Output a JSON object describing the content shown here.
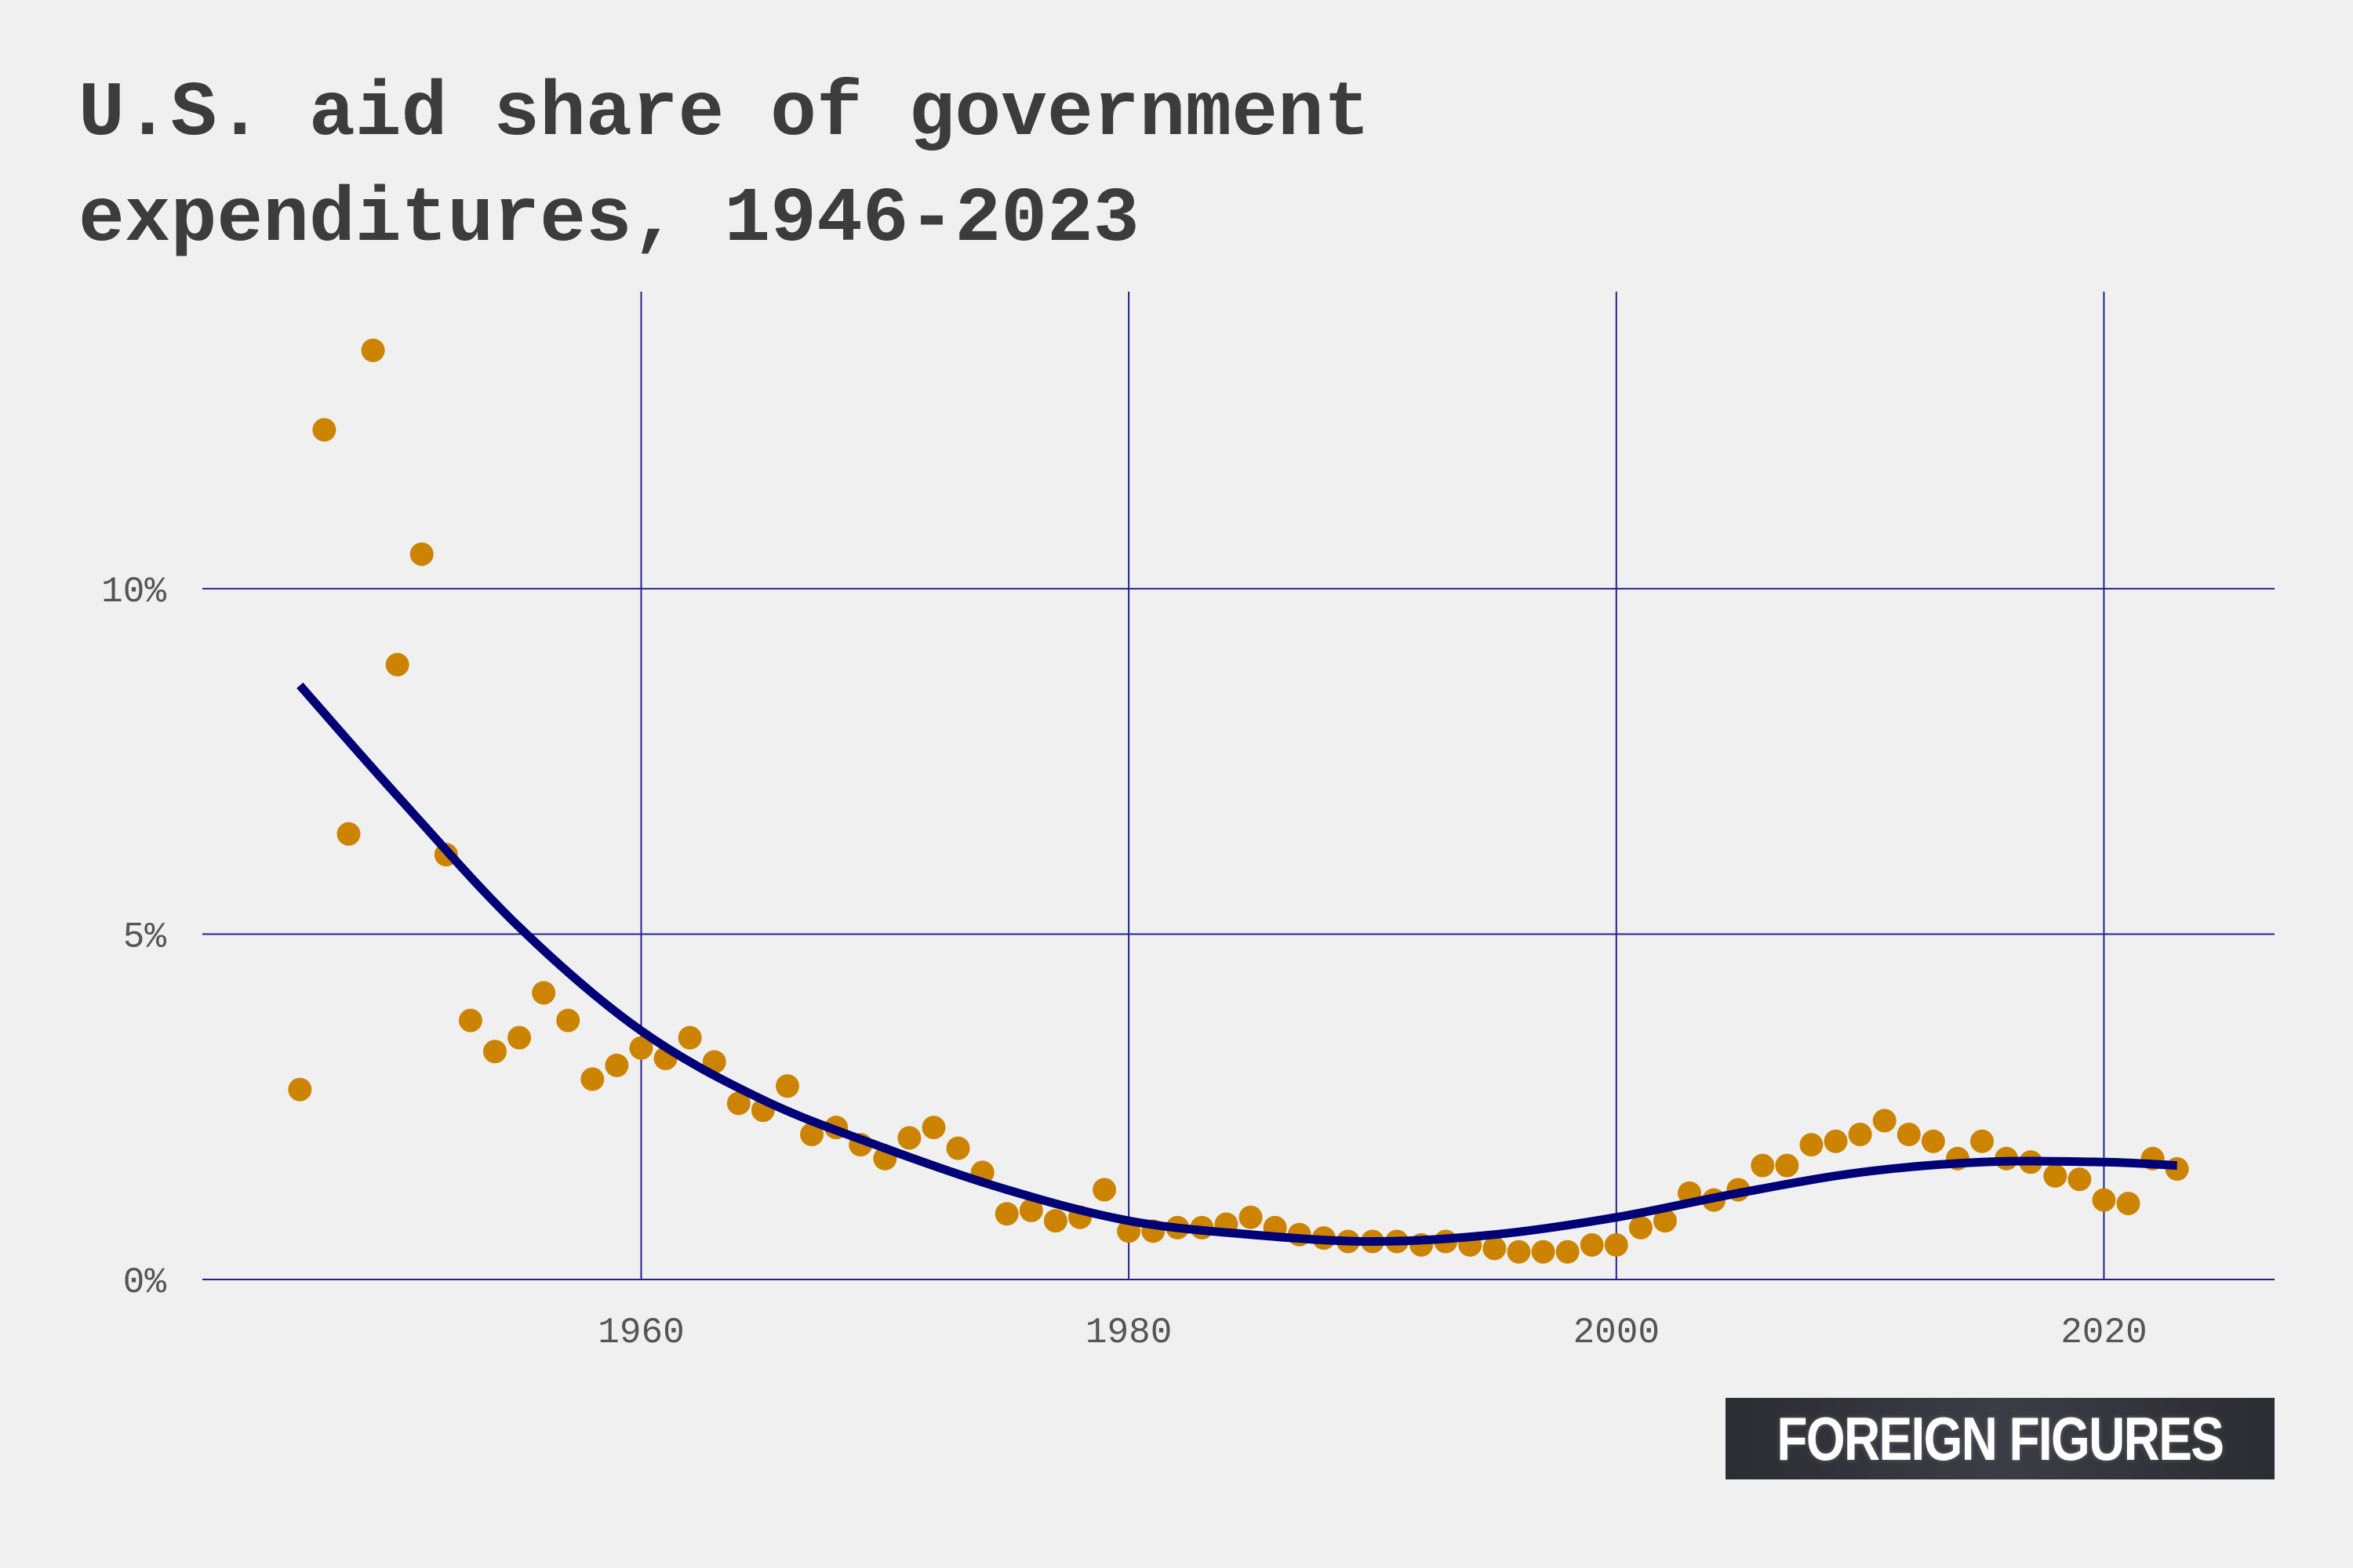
{
  "chart_data": {
    "type": "scatter",
    "title_lines": [
      "U.S. aid share of government",
      "expenditures, 1946-2023"
    ],
    "xlabel": "",
    "ylabel": "",
    "xlim": [
      1942,
      2027
    ],
    "ylim": [
      0,
      14.3
    ],
    "x_ticks": [
      1960,
      1980,
      2000,
      2020
    ],
    "x_tick_labels": [
      "1960",
      "1980",
      "2000",
      "2020"
    ],
    "y_ticks": [
      0,
      5,
      10
    ],
    "y_tick_labels": [
      "0%",
      "5%",
      "10%"
    ],
    "grid": true,
    "points_color": "#cc8400",
    "trend_color": "#000077",
    "grid_color": "#22228a",
    "series": [
      {
        "kind": "points",
        "x": [
          1946,
          1947,
          1948,
          1949,
          1950,
          1951,
          1952,
          1953,
          1954,
          1955,
          1956,
          1957,
          1958,
          1959,
          1960,
          1961,
          1962,
          1963,
          1964,
          1965,
          1966,
          1967,
          1968,
          1969,
          1970,
          1971,
          1972,
          1973,
          1974,
          1975,
          1976,
          1977,
          1978,
          1979,
          1980,
          1981,
          1982,
          1983,
          1984,
          1985,
          1986,
          1987,
          1988,
          1989,
          1990,
          1991,
          1992,
          1993,
          1994,
          1995,
          1996,
          1997,
          1998,
          1999,
          2000,
          2001,
          2002,
          2003,
          2004,
          2005,
          2006,
          2007,
          2008,
          2009,
          2010,
          2011,
          2012,
          2013,
          2014,
          2015,
          2016,
          2017,
          2018,
          2019,
          2020,
          2021,
          2022,
          2023
        ],
        "y": [
          2.75,
          12.3,
          6.45,
          13.45,
          8.9,
          10.5,
          6.15,
          3.75,
          3.3,
          3.5,
          4.15,
          3.75,
          2.9,
          3.1,
          3.35,
          3.2,
          3.5,
          3.15,
          2.55,
          2.45,
          2.8,
          2.1,
          2.2,
          1.95,
          1.75,
          2.05,
          2.2,
          1.9,
          1.55,
          0.95,
          1.0,
          0.85,
          0.9,
          1.3,
          0.7,
          0.7,
          0.75,
          0.75,
          0.8,
          0.9,
          0.75,
          0.65,
          0.6,
          0.55,
          0.55,
          0.55,
          0.5,
          0.55,
          0.5,
          0.45,
          0.4,
          0.4,
          0.4,
          0.5,
          0.5,
          0.75,
          0.85,
          1.25,
          1.15,
          1.3,
          1.65,
          1.65,
          1.95,
          2.0,
          2.1,
          2.3,
          2.1,
          2.0,
          1.75,
          2.0,
          1.75,
          1.7,
          1.5,
          1.45,
          1.15,
          1.1,
          1.75,
          1.6
        ]
      },
      {
        "kind": "trend",
        "x": [
          1946,
          1950,
          1955,
          1960,
          1965,
          1970,
          1975,
          1980,
          1985,
          1990,
          1995,
          2000,
          2005,
          2010,
          2015,
          2020,
          2023
        ],
        "y": [
          8.6,
          7.0,
          5.1,
          3.6,
          2.6,
          1.9,
          1.3,
          0.85,
          0.65,
          0.55,
          0.65,
          0.9,
          1.25,
          1.55,
          1.7,
          1.7,
          1.65
        ]
      }
    ]
  },
  "branding": {
    "text": "FOREIGN FIGURES"
  }
}
